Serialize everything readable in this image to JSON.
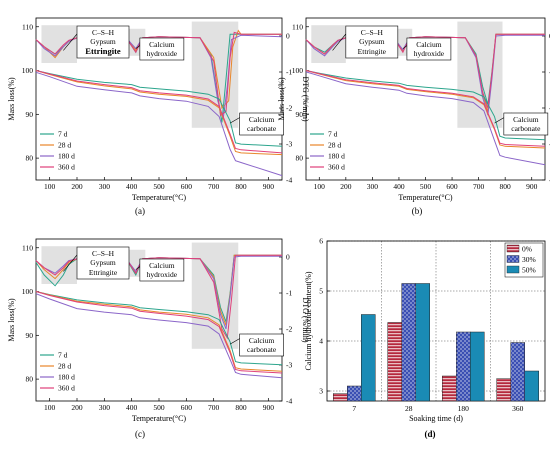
{
  "labels": {
    "mass_loss": "Mass loss(%)",
    "dtg": "DTG (%/min)",
    "temperature": "Temperature(°C)",
    "csh": "C–S–H",
    "gypsum": "Gypsum",
    "ettringite": "Ettringite",
    "calcium": "Calcium",
    "hydroxide": "hydroxide",
    "carbonate": "carbonate"
  },
  "colors": {
    "7d": "#2ca58d",
    "28d": "#e8862a",
    "180d": "#8b66c9",
    "360d": "#e0407a",
    "bar_0": "#b5293e",
    "bar_30": "#3a4fb3",
    "bar_50": "#1a8bb5",
    "shade": "#d4d4d4"
  },
  "chart_data": [
    {
      "panel": "(a)",
      "type": "line",
      "xlabel": "Temperature(°C)",
      "ylabel": "Mass loss(%)",
      "y2label": "DTG (%/min)",
      "xlim": [
        50,
        950
      ],
      "ylim": [
        75,
        112
      ],
      "y2lim": [
        -4,
        0.5
      ],
      "xticks": [
        100,
        200,
        300,
        400,
        500,
        600,
        700,
        800,
        900
      ],
      "yticks": [
        80,
        90,
        100,
        110
      ],
      "y2ticks": [
        0,
        -1,
        -2,
        -3,
        -4
      ],
      "legend": [
        "7 d",
        "28 d",
        "180 d",
        "360 d"
      ],
      "legend_position": "bottom-left",
      "tga": [
        {
          "name": "7 d",
          "x": [
            50,
            100,
            200,
            300,
            400,
            430,
            500,
            600,
            680,
            720,
            760,
            780,
            800,
            950
          ],
          "y": [
            100,
            99.3,
            98,
            97.3,
            96.8,
            96.2,
            95.8,
            95.3,
            94.6,
            93.5,
            88.5,
            83.5,
            83.2,
            82.7
          ]
        },
        {
          "name": "28 d",
          "x": [
            50,
            100,
            200,
            300,
            400,
            430,
            500,
            600,
            680,
            720,
            760,
            780,
            800,
            950
          ],
          "y": [
            100,
            99.1,
            97.4,
            96.5,
            95.8,
            95.1,
            94.6,
            94.1,
            93.2,
            91.5,
            85,
            81.5,
            81.2,
            80.8
          ]
        },
        {
          "name": "180 d",
          "x": [
            50,
            100,
            200,
            300,
            400,
            430,
            500,
            600,
            680,
            720,
            760,
            780,
            800,
            950
          ],
          "y": [
            99.6,
            98.6,
            96.4,
            95.6,
            94.9,
            94.2,
            93.6,
            93,
            91.8,
            89.5,
            82,
            79.4,
            79,
            76
          ]
        },
        {
          "name": "360 d",
          "x": [
            50,
            100,
            200,
            300,
            400,
            430,
            500,
            600,
            680,
            720,
            760,
            780,
            800,
            950
          ],
          "y": [
            100,
            99.2,
            97.6,
            96.8,
            96.1,
            95.4,
            94.9,
            94.4,
            93.5,
            91.8,
            85.5,
            82.2,
            81.9,
            81.2
          ]
        }
      ],
      "dtg": [
        {
          "name": "7 d",
          "x": [
            50,
            80,
            120,
            150,
            170,
            200,
            380,
            415,
            440,
            500,
            650,
            690,
            710,
            730,
            745,
            760,
            800,
            950
          ],
          "y": [
            -0.1,
            -0.3,
            -0.5,
            -0.3,
            -0.15,
            -0.05,
            -0.05,
            -0.45,
            -0.05,
            -0.02,
            -0.05,
            -0.5,
            -1.5,
            -2.4,
            -1.2,
            0.05,
            0.05,
            0.05
          ]
        },
        {
          "name": "28 d",
          "x": [
            50,
            80,
            120,
            150,
            170,
            200,
            380,
            415,
            440,
            500,
            650,
            700,
            730,
            755,
            770,
            790,
            800,
            950
          ],
          "y": [
            -0.1,
            -0.3,
            -0.6,
            -0.3,
            -0.15,
            -0.05,
            -0.05,
            -0.4,
            -0.05,
            -0.02,
            -0.05,
            -0.6,
            -2,
            -1.8,
            -0.3,
            0.15,
            0.05,
            0.05
          ]
        },
        {
          "name": "180 d",
          "x": [
            50,
            80,
            120,
            150,
            170,
            200,
            380,
            415,
            440,
            500,
            650,
            690,
            715,
            735,
            750,
            765,
            800,
            950
          ],
          "y": [
            -0.1,
            -0.35,
            -0.55,
            -0.3,
            -0.15,
            -0.05,
            -0.05,
            -0.35,
            -0.05,
            -0.02,
            -0.05,
            -0.6,
            -1.8,
            -2.3,
            -1.4,
            -0.1,
            0.02,
            -0.02
          ]
        },
        {
          "name": "360 d",
          "x": [
            50,
            80,
            120,
            150,
            170,
            200,
            380,
            415,
            440,
            500,
            650,
            700,
            725,
            745,
            760,
            775,
            800,
            950
          ],
          "y": [
            -0.1,
            -0.3,
            -0.5,
            -0.25,
            -0.12,
            -0.05,
            -0.05,
            -0.45,
            -0.05,
            -0.02,
            -0.05,
            -0.7,
            -2.2,
            -2.1,
            -0.6,
            0.1,
            0.05,
            0.05
          ]
        }
      ]
    },
    {
      "panel": "(b)",
      "type": "line",
      "xlabel": "Temperature(°C)",
      "ylabel": "Mass loss(%)",
      "y2label": "DTG (%/min)",
      "xlim": [
        50,
        950
      ],
      "ylim": [
        75,
        112
      ],
      "y2lim": [
        -4,
        0.5
      ],
      "xticks": [
        100,
        200,
        300,
        400,
        500,
        600,
        700,
        800,
        900
      ],
      "yticks": [
        80,
        90,
        100,
        110
      ],
      "y2ticks": [
        0,
        -1,
        -2,
        -3,
        -4
      ],
      "legend": [
        "7 d",
        "28 d",
        "180 d",
        "360 d"
      ],
      "legend_position": "bottom-left",
      "tga": [
        {
          "name": "7 d",
          "x": [
            50,
            100,
            200,
            300,
            400,
            430,
            500,
            600,
            680,
            720,
            760,
            780,
            800,
            950
          ],
          "y": [
            100,
            99.4,
            98.3,
            97.6,
            97.1,
            96.6,
            96.2,
            95.7,
            95.1,
            94,
            89.5,
            85,
            84.6,
            84.2
          ]
        },
        {
          "name": "28 d",
          "x": [
            50,
            100,
            200,
            300,
            400,
            430,
            500,
            600,
            680,
            720,
            760,
            780,
            800,
            950
          ],
          "y": [
            100,
            99.2,
            97.7,
            97,
            96.4,
            95.7,
            95.2,
            94.6,
            93.8,
            92.2,
            86.5,
            83,
            82.7,
            82.3
          ]
        },
        {
          "name": "180 d",
          "x": [
            50,
            100,
            200,
            300,
            400,
            430,
            500,
            600,
            680,
            720,
            760,
            780,
            800,
            950
          ],
          "y": [
            99.7,
            98.8,
            97,
            96.2,
            95.5,
            94.8,
            94.2,
            93.6,
            92.7,
            90.8,
            84,
            80.6,
            80.2,
            78.5
          ]
        },
        {
          "name": "360 d",
          "x": [
            50,
            100,
            200,
            300,
            400,
            430,
            500,
            600,
            680,
            720,
            760,
            780,
            800,
            950
          ],
          "y": [
            100,
            99.3,
            97.9,
            97.2,
            96.6,
            95.9,
            95.4,
            94.8,
            94,
            92.4,
            86.8,
            83.4,
            83.1,
            82.7
          ]
        }
      ],
      "dtg": [
        {
          "name": "7 d",
          "x": [
            50,
            80,
            120,
            150,
            170,
            200,
            380,
            415,
            440,
            500,
            650,
            690,
            715,
            735,
            750,
            765,
            800,
            950
          ],
          "y": [
            -0.1,
            -0.3,
            -0.45,
            -0.25,
            -0.12,
            -0.05,
            -0.05,
            -0.4,
            -0.05,
            -0.02,
            -0.05,
            -0.5,
            -1.4,
            -1.9,
            -1,
            0.05,
            0.05,
            0.05
          ]
        },
        {
          "name": "28 d",
          "x": [
            50,
            80,
            120,
            150,
            170,
            200,
            380,
            415,
            440,
            500,
            650,
            690,
            715,
            735,
            750,
            765,
            800,
            950
          ],
          "y": [
            -0.1,
            -0.3,
            -0.5,
            -0.28,
            -0.13,
            -0.05,
            -0.05,
            -0.42,
            -0.05,
            -0.02,
            -0.05,
            -0.55,
            -1.6,
            -2.1,
            -1.1,
            0.05,
            0.05,
            0.05
          ]
        },
        {
          "name": "180 d",
          "x": [
            50,
            80,
            120,
            150,
            170,
            200,
            380,
            415,
            440,
            500,
            650,
            690,
            715,
            735,
            750,
            765,
            800,
            950
          ],
          "y": [
            -0.1,
            -0.35,
            -0.55,
            -0.3,
            -0.15,
            -0.05,
            -0.05,
            -0.38,
            -0.05,
            -0.02,
            -0.05,
            -0.6,
            -1.7,
            -2.2,
            -1.2,
            0,
            0.02,
            0.02
          ]
        },
        {
          "name": "360 d",
          "x": [
            50,
            80,
            120,
            150,
            170,
            200,
            380,
            415,
            440,
            500,
            650,
            690,
            715,
            735,
            750,
            765,
            800,
            950
          ],
          "y": [
            -0.1,
            -0.3,
            -0.5,
            -0.25,
            -0.12,
            -0.05,
            -0.05,
            -0.45,
            -0.05,
            -0.02,
            -0.05,
            -0.55,
            -1.55,
            -2,
            -1.05,
            0.05,
            0.05,
            0.05
          ]
        }
      ]
    },
    {
      "panel": "(c)",
      "type": "line",
      "xlabel": "Temperature(°C)",
      "ylabel": "Mass loss(%)",
      "y2label": "DTG (%/min)",
      "xlim": [
        50,
        950
      ],
      "ylim": [
        75,
        112
      ],
      "y2lim": [
        -4,
        0.5
      ],
      "xticks": [
        100,
        200,
        300,
        400,
        500,
        600,
        700,
        800,
        900
      ],
      "yticks": [
        80,
        90,
        100,
        110
      ],
      "y2ticks": [
        0,
        -1,
        -2,
        -3,
        -4
      ],
      "legend": [
        "7 d",
        "28 d",
        "180 d",
        "360 d"
      ],
      "legend_position": "bottom-left",
      "tga": [
        {
          "name": "7 d",
          "x": [
            50,
            100,
            200,
            300,
            400,
            430,
            500,
            600,
            680,
            720,
            760,
            780,
            800,
            950
          ],
          "y": [
            100,
            99.3,
            98.1,
            97.4,
            96.9,
            96.3,
            95.9,
            95.4,
            94.7,
            93.6,
            88.5,
            84,
            83.7,
            83.3
          ]
        },
        {
          "name": "28 d",
          "x": [
            50,
            100,
            200,
            300,
            400,
            430,
            500,
            600,
            680,
            720,
            760,
            780,
            800,
            950
          ],
          "y": [
            100,
            99.2,
            97.8,
            97.1,
            96.5,
            95.8,
            95.3,
            94.8,
            94,
            92.4,
            86.5,
            82.6,
            82.3,
            81.8
          ]
        },
        {
          "name": "180 d",
          "x": [
            50,
            100,
            200,
            300,
            400,
            430,
            500,
            600,
            680,
            720,
            760,
            780,
            800,
            950
          ],
          "y": [
            99.5,
            98.3,
            96.1,
            95.3,
            94.7,
            94,
            93.5,
            92.9,
            92.1,
            90.3,
            84.5,
            81.5,
            81.1,
            80.3
          ]
        },
        {
          "name": "360 d",
          "x": [
            50,
            100,
            200,
            300,
            400,
            430,
            500,
            600,
            680,
            720,
            760,
            780,
            800,
            950
          ],
          "y": [
            100,
            99.1,
            97.6,
            96.8,
            96.2,
            95.5,
            95,
            94.4,
            93.6,
            92,
            86,
            82.2,
            81.9,
            81.4
          ]
        }
      ],
      "dtg": [
        {
          "name": "7 d",
          "x": [
            50,
            80,
            120,
            150,
            170,
            200,
            380,
            415,
            440,
            500,
            650,
            700,
            725,
            745,
            760,
            775,
            800,
            950
          ],
          "y": [
            -0.15,
            -0.5,
            -0.8,
            -0.5,
            -0.2,
            -0.05,
            -0.05,
            -0.5,
            -0.05,
            -0.02,
            -0.05,
            -0.5,
            -1.4,
            -1.8,
            -1,
            0.05,
            0.05,
            0.05
          ]
        },
        {
          "name": "28 d",
          "x": [
            50,
            80,
            120,
            150,
            170,
            200,
            380,
            415,
            440,
            500,
            650,
            700,
            725,
            745,
            760,
            775,
            800,
            950
          ],
          "y": [
            -0.1,
            -0.35,
            -0.6,
            -0.35,
            -0.15,
            -0.05,
            -0.05,
            -0.45,
            -0.05,
            -0.02,
            -0.05,
            -0.55,
            -1.5,
            -1.9,
            -1.05,
            0.05,
            0.05,
            0.05
          ]
        },
        {
          "name": "180 d",
          "x": [
            50,
            80,
            120,
            150,
            170,
            200,
            380,
            415,
            440,
            500,
            650,
            700,
            725,
            745,
            760,
            775,
            800,
            950
          ],
          "y": [
            -0.1,
            -0.3,
            -0.45,
            -0.25,
            -0.1,
            -0.05,
            -0.05,
            -0.4,
            -0.05,
            -0.02,
            -0.05,
            -0.6,
            -1.6,
            -2,
            -1.1,
            0,
            0.02,
            0.02
          ]
        },
        {
          "name": "360 d",
          "x": [
            50,
            80,
            120,
            150,
            170,
            200,
            380,
            415,
            440,
            500,
            650,
            700,
            730,
            750,
            765,
            780,
            800,
            950
          ],
          "y": [
            -0.1,
            -0.3,
            -0.5,
            -0.3,
            -0.12,
            -0.05,
            -0.05,
            -0.45,
            -0.05,
            -0.02,
            -0.05,
            -0.7,
            -2,
            -2.25,
            -1.2,
            0.05,
            0.05,
            0.05
          ]
        }
      ]
    },
    {
      "panel": "(d)",
      "type": "bar",
      "xlabel": "Soaking time (d)",
      "ylabel": "Calcium hydroxide content(%)",
      "categories": [
        "7",
        "28",
        "180",
        "360"
      ],
      "ylim": [
        2.8,
        6
      ],
      "yticks": [
        3,
        4,
        5,
        6
      ],
      "legend_position": "top-right",
      "grid": true,
      "series": [
        {
          "name": "0%",
          "values": [
            2.95,
            4.37,
            3.3,
            3.25
          ]
        },
        {
          "name": "30%",
          "values": [
            3.1,
            5.15,
            4.18,
            3.97
          ]
        },
        {
          "name": "50%",
          "values": [
            4.53,
            5.15,
            4.18,
            3.4
          ]
        }
      ]
    }
  ]
}
